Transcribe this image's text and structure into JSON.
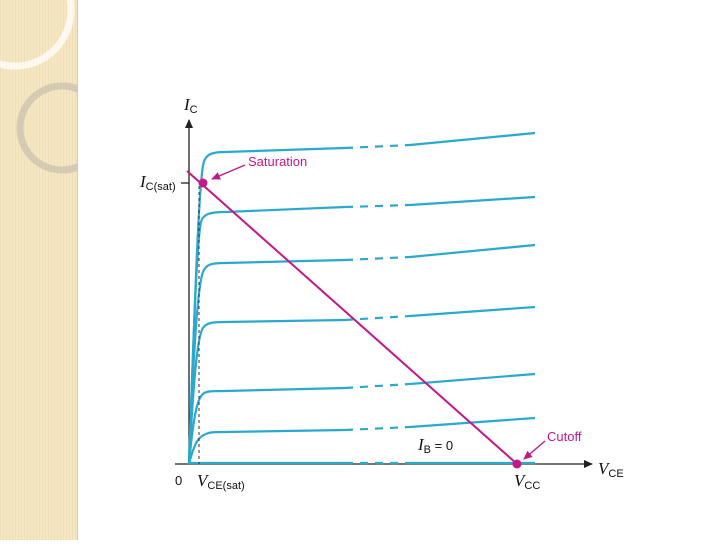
{
  "axes": {
    "y_label": "I",
    "y_label_sub": "C",
    "x_label": "V",
    "x_label_sub": "CE",
    "origin": "0"
  },
  "points": {
    "ic_sat_main": "I",
    "ic_sat_sub": "C(sat)",
    "vce_sat_main": "V",
    "vce_sat_sub": "CE(sat)",
    "vcc_main": "V",
    "vcc_sub": "CC"
  },
  "annotations": {
    "saturation": "Saturation",
    "cutoff": "Cutoff",
    "ib_zero_main": "I",
    "ib_zero_sub": "B",
    "ib_zero_value": " = 0"
  },
  "colors": {
    "curves": "#2aa9cf",
    "load_line": "#c2188b",
    "panel": "#f5e7c2"
  }
}
